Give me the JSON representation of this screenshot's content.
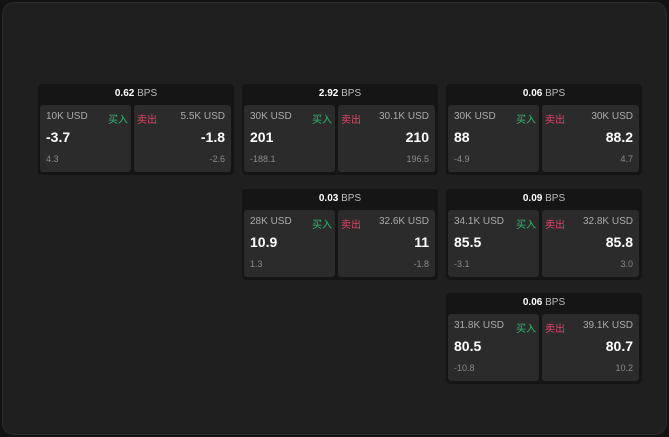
{
  "colors": {
    "buy": "#2eb872",
    "sell": "#e0446a"
  },
  "labels": {
    "buy": "买入",
    "sell": "卖出",
    "unit": "BPS"
  },
  "tiles": [
    {
      "spread": "0.62",
      "buy": {
        "amount": "10K USD",
        "price": "-3.7",
        "delta": "4.3"
      },
      "sell": {
        "amount": "5.5K USD",
        "price": "-1.8",
        "delta": "-2.6"
      }
    },
    {
      "spread": "2.92",
      "buy": {
        "amount": "30K USD",
        "price": "201",
        "delta": "-188.1"
      },
      "sell": {
        "amount": "30.1K USD",
        "price": "210",
        "delta": "196.5"
      }
    },
    {
      "spread": "0.06",
      "buy": {
        "amount": "30K USD",
        "price": "88",
        "delta": "-4.9"
      },
      "sell": {
        "amount": "30K USD",
        "price": "88.2",
        "delta": "4.7"
      }
    },
    {
      "spread": "0.03",
      "buy": {
        "amount": "28K USD",
        "price": "10.9",
        "delta": "1.3"
      },
      "sell": {
        "amount": "32.6K USD",
        "price": "11",
        "delta": "-1.8"
      }
    },
    {
      "spread": "0.09",
      "buy": {
        "amount": "34.1K USD",
        "price": "85.5",
        "delta": "-3.1"
      },
      "sell": {
        "amount": "32.8K USD",
        "price": "85.8",
        "delta": "3.0"
      }
    },
    {
      "spread": "0.06",
      "buy": {
        "amount": "31.8K USD",
        "price": "80.5",
        "delta": "-10.8"
      },
      "sell": {
        "amount": "39.1K USD",
        "price": "80.7",
        "delta": "10.2"
      }
    }
  ]
}
